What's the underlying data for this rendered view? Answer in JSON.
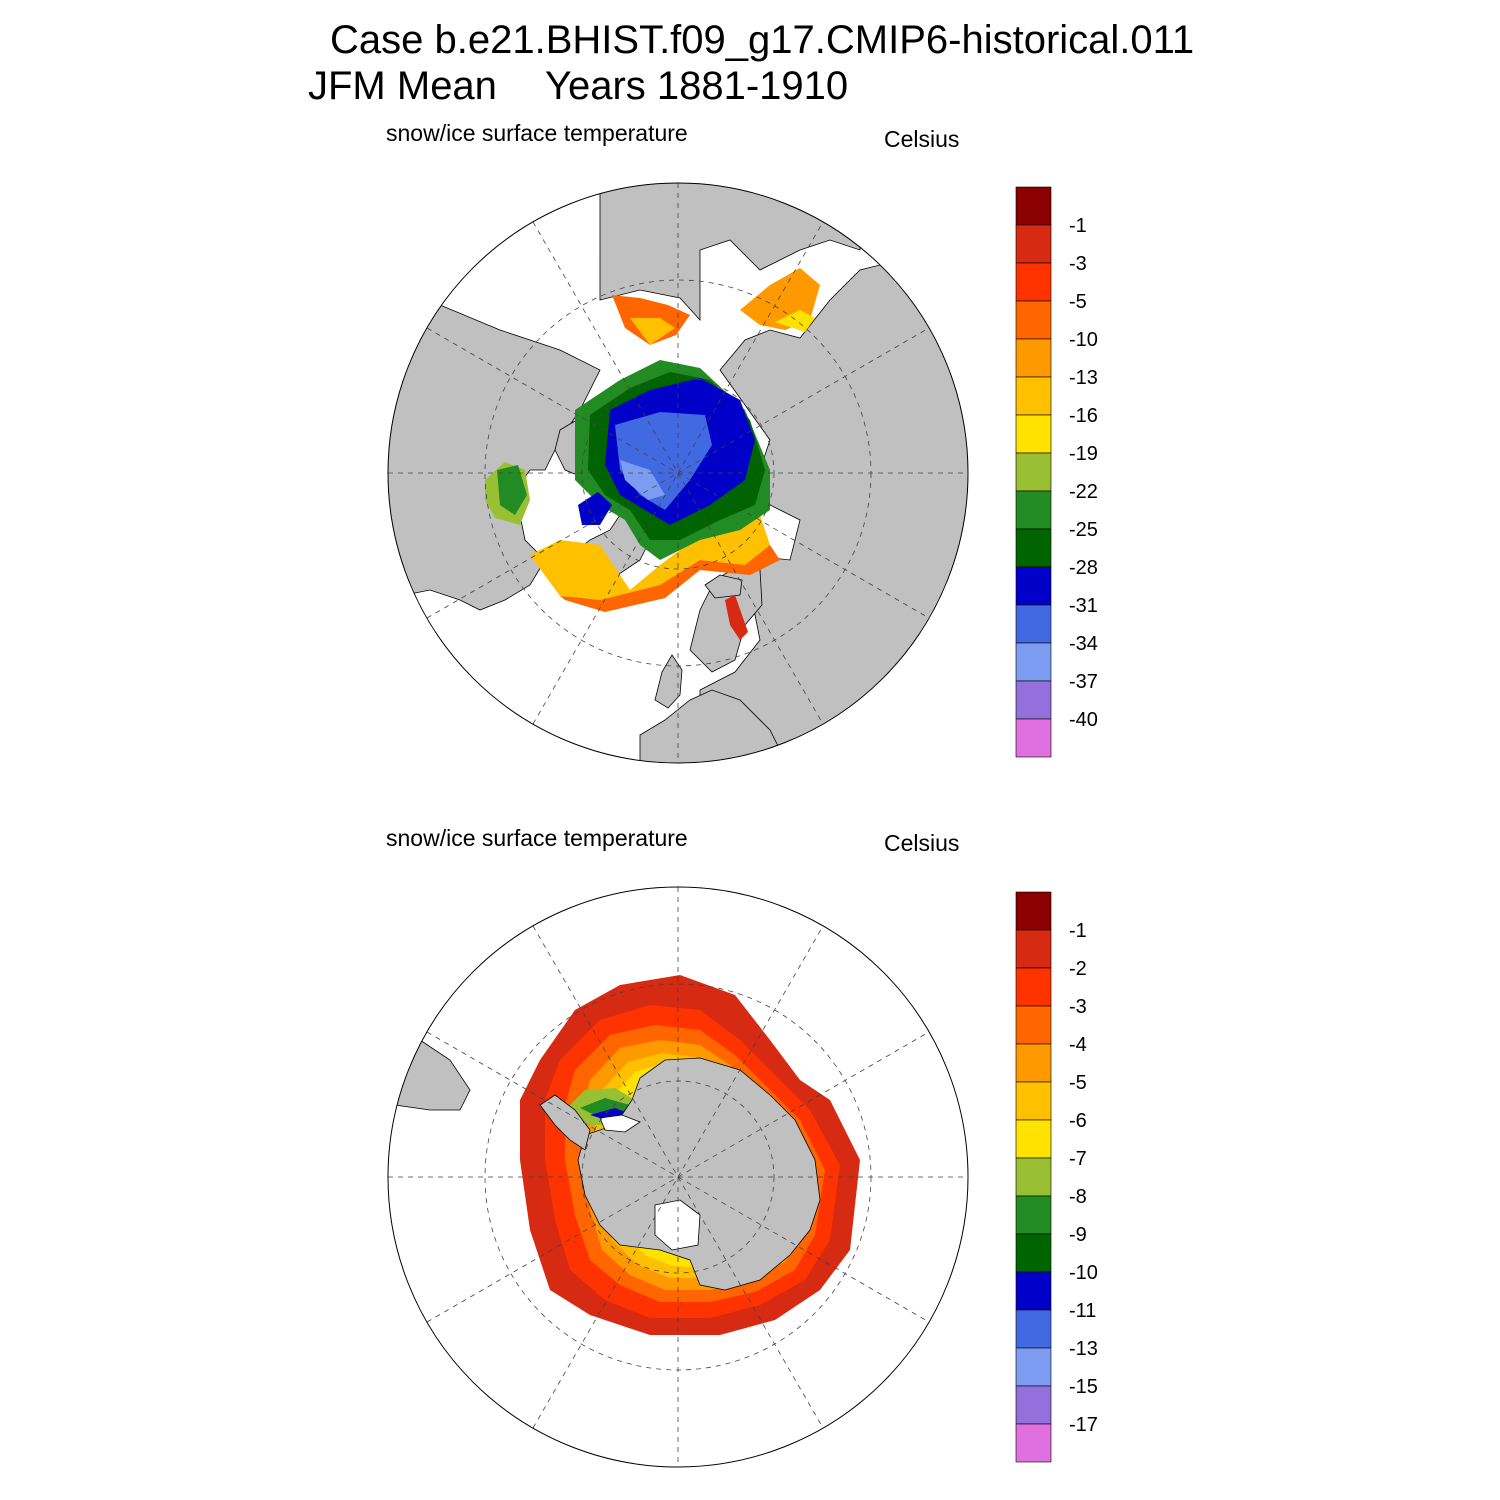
{
  "header": {
    "case_line": "Case b.e21.BHIST.f09_g17.CMIP6-historical.011",
    "season": "JFM Mean",
    "years": "Years 1881-1910"
  },
  "panels": [
    {
      "hemisphere": "north",
      "variable_label": "snow/ice surface temperature",
      "units_label": "Celsius",
      "colorbar": {
        "colors": [
          "#8b0000",
          "#d62a12",
          "#ff3300",
          "#ff6600",
          "#ff9900",
          "#ffc000",
          "#ffe200",
          "#99c032",
          "#238b23",
          "#006400",
          "#0000c8",
          "#4169e1",
          "#7b9cf0",
          "#9370db",
          "#e070e0"
        ],
        "labels": [
          "-1",
          "-3",
          "-5",
          "-10",
          "-13",
          "-16",
          "-19",
          "-22",
          "-25",
          "-28",
          "-31",
          "-34",
          "-37",
          "-40"
        ]
      }
    },
    {
      "hemisphere": "south",
      "variable_label": "snow/ice surface temperature",
      "units_label": "Celsius",
      "colorbar": {
        "colors": [
          "#8b0000",
          "#d62a12",
          "#ff3300",
          "#ff6600",
          "#ff9900",
          "#ffc000",
          "#ffe200",
          "#99c032",
          "#238b23",
          "#006400",
          "#0000c8",
          "#4169e1",
          "#7b9cf0",
          "#9370db",
          "#e070e0"
        ],
        "labels": [
          "-1",
          "-2",
          "-3",
          "-4",
          "-5",
          "-6",
          "-7",
          "-8",
          "-9",
          "-10",
          "-11",
          "-13",
          "-15",
          "-17"
        ]
      }
    }
  ]
}
